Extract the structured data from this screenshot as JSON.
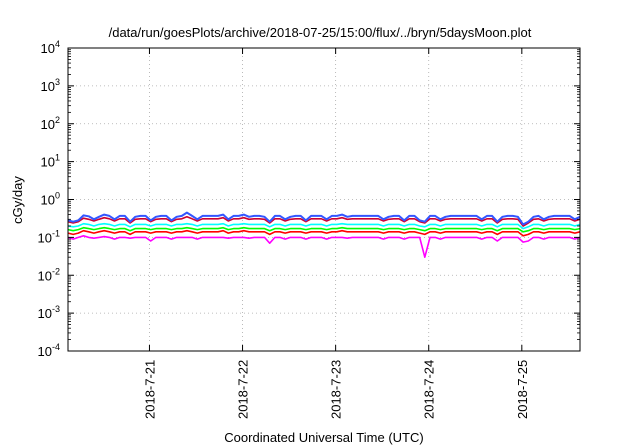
{
  "chart_data": {
    "type": "line",
    "title": "/data/run/goesPlots/archive/2018-07-25/15:00/flux/../bryn/5daysMoon.plot",
    "xlabel": "Coordinated Universal Time (UTC)",
    "ylabel": "cGy/day",
    "yscale": "log",
    "ylim": [
      0.0001,
      10000
    ],
    "y_ticks": [
      {
        "value": 0.0001,
        "base": "10",
        "exp": "-4"
      },
      {
        "value": 0.001,
        "base": "10",
        "exp": "-3"
      },
      {
        "value": 0.01,
        "base": "10",
        "exp": "-2"
      },
      {
        "value": 0.1,
        "base": "10",
        "exp": "-1"
      },
      {
        "value": 1,
        "base": "10",
        "exp": "0"
      },
      {
        "value": 10,
        "base": "10",
        "exp": "1"
      },
      {
        "value": 100,
        "base": "10",
        "exp": "2"
      },
      {
        "value": 1000,
        "base": "10",
        "exp": "3"
      },
      {
        "value": 10000,
        "base": "10",
        "exp": "4"
      }
    ],
    "xlim": [
      "2018-07-20 03:00",
      "2018-07-25 15:00"
    ],
    "x_ticks": [
      {
        "value": "2018-07-21 00:00",
        "label": "2018-7-21"
      },
      {
        "value": "2018-07-22 00:00",
        "label": "2018-7-22"
      },
      {
        "value": "2018-07-23 00:00",
        "label": "2018-7-23"
      },
      {
        "value": "2018-07-24 00:00",
        "label": "2018-7-24"
      },
      {
        "value": "2018-07-25 00:00",
        "label": "2018-7-25"
      }
    ],
    "grid": true,
    "legend": "none",
    "series": [
      {
        "color": "#ff00ff",
        "values": [
          0.1,
          0.09,
          0.1,
          0.11,
          0.1,
          0.095,
          0.1,
          0.105,
          0.1,
          0.09,
          0.1,
          0.1,
          0.095,
          0.1,
          0.1,
          0.1,
          0.08,
          0.1,
          0.1,
          0.1,
          0.09,
          0.1,
          0.1,
          0.1,
          0.1,
          0.09,
          0.1,
          0.1,
          0.1,
          0.1,
          0.1,
          0.095,
          0.1,
          0.1,
          0.1,
          0.095,
          0.1,
          0.1,
          0.1,
          0.07,
          0.1,
          0.1,
          0.09,
          0.1,
          0.1,
          0.1,
          0.09,
          0.1,
          0.1,
          0.1,
          0.09,
          0.1,
          0.1,
          0.1,
          0.095,
          0.1,
          0.1,
          0.1,
          0.1,
          0.1,
          0.1,
          0.09,
          0.1,
          0.1,
          0.1,
          0.09,
          0.1,
          0.1,
          0.1,
          0.03,
          0.1,
          0.1,
          0.09,
          0.1,
          0.1,
          0.1,
          0.1,
          0.1,
          0.1,
          0.1,
          0.09,
          0.1,
          0.1,
          0.08,
          0.1,
          0.1,
          0.1,
          0.1,
          0.075,
          0.08,
          0.1,
          0.1,
          0.09,
          0.1,
          0.1,
          0.1,
          0.1,
          0.1,
          0.09,
          0.1
        ]
      },
      {
        "color": "#ff0000",
        "values": [
          0.13,
          0.12,
          0.13,
          0.15,
          0.14,
          0.13,
          0.14,
          0.15,
          0.14,
          0.13,
          0.14,
          0.14,
          0.12,
          0.14,
          0.14,
          0.14,
          0.13,
          0.14,
          0.14,
          0.14,
          0.13,
          0.14,
          0.14,
          0.15,
          0.14,
          0.13,
          0.14,
          0.14,
          0.14,
          0.14,
          0.15,
          0.13,
          0.14,
          0.14,
          0.15,
          0.14,
          0.14,
          0.14,
          0.14,
          0.12,
          0.14,
          0.14,
          0.13,
          0.14,
          0.14,
          0.14,
          0.13,
          0.14,
          0.14,
          0.14,
          0.13,
          0.14,
          0.14,
          0.15,
          0.14,
          0.14,
          0.14,
          0.14,
          0.14,
          0.14,
          0.14,
          0.13,
          0.14,
          0.14,
          0.14,
          0.13,
          0.14,
          0.14,
          0.13,
          0.12,
          0.14,
          0.14,
          0.13,
          0.14,
          0.14,
          0.14,
          0.14,
          0.14,
          0.14,
          0.14,
          0.13,
          0.14,
          0.14,
          0.12,
          0.14,
          0.14,
          0.14,
          0.14,
          0.11,
          0.12,
          0.14,
          0.14,
          0.13,
          0.14,
          0.14,
          0.14,
          0.14,
          0.14,
          0.13,
          0.14
        ]
      },
      {
        "color": "#00ff00",
        "values": [
          0.16,
          0.15,
          0.16,
          0.18,
          0.17,
          0.16,
          0.17,
          0.18,
          0.17,
          0.16,
          0.17,
          0.17,
          0.15,
          0.17,
          0.17,
          0.17,
          0.16,
          0.17,
          0.17,
          0.17,
          0.16,
          0.17,
          0.17,
          0.18,
          0.17,
          0.16,
          0.17,
          0.17,
          0.17,
          0.17,
          0.18,
          0.16,
          0.17,
          0.17,
          0.18,
          0.17,
          0.17,
          0.17,
          0.17,
          0.15,
          0.17,
          0.17,
          0.16,
          0.17,
          0.17,
          0.17,
          0.16,
          0.17,
          0.17,
          0.17,
          0.16,
          0.17,
          0.17,
          0.18,
          0.17,
          0.17,
          0.17,
          0.17,
          0.17,
          0.17,
          0.17,
          0.16,
          0.17,
          0.17,
          0.17,
          0.16,
          0.17,
          0.17,
          0.16,
          0.15,
          0.17,
          0.17,
          0.16,
          0.17,
          0.17,
          0.17,
          0.17,
          0.17,
          0.17,
          0.17,
          0.16,
          0.17,
          0.17,
          0.15,
          0.17,
          0.17,
          0.17,
          0.17,
          0.14,
          0.15,
          0.17,
          0.17,
          0.16,
          0.17,
          0.17,
          0.17,
          0.17,
          0.17,
          0.16,
          0.17
        ]
      },
      {
        "color": "#00ffff",
        "values": [
          0.2,
          0.19,
          0.2,
          0.23,
          0.22,
          0.2,
          0.22,
          0.23,
          0.22,
          0.2,
          0.22,
          0.22,
          0.19,
          0.22,
          0.22,
          0.22,
          0.2,
          0.22,
          0.22,
          0.22,
          0.2,
          0.22,
          0.22,
          0.23,
          0.22,
          0.2,
          0.22,
          0.22,
          0.22,
          0.22,
          0.23,
          0.2,
          0.22,
          0.22,
          0.23,
          0.22,
          0.22,
          0.22,
          0.22,
          0.19,
          0.22,
          0.22,
          0.2,
          0.22,
          0.22,
          0.22,
          0.2,
          0.22,
          0.22,
          0.22,
          0.2,
          0.22,
          0.22,
          0.23,
          0.22,
          0.22,
          0.22,
          0.22,
          0.22,
          0.22,
          0.22,
          0.2,
          0.22,
          0.22,
          0.22,
          0.2,
          0.22,
          0.22,
          0.2,
          0.19,
          0.22,
          0.22,
          0.2,
          0.22,
          0.22,
          0.22,
          0.22,
          0.22,
          0.22,
          0.22,
          0.2,
          0.22,
          0.22,
          0.19,
          0.22,
          0.22,
          0.22,
          0.22,
          0.17,
          0.19,
          0.22,
          0.22,
          0.2,
          0.22,
          0.22,
          0.22,
          0.22,
          0.22,
          0.2,
          0.22
        ]
      },
      {
        "color": "#cc0033",
        "values": [
          0.26,
          0.24,
          0.26,
          0.32,
          0.3,
          0.27,
          0.3,
          0.33,
          0.31,
          0.27,
          0.31,
          0.31,
          0.24,
          0.3,
          0.31,
          0.31,
          0.26,
          0.3,
          0.31,
          0.31,
          0.26,
          0.3,
          0.31,
          0.35,
          0.31,
          0.27,
          0.31,
          0.31,
          0.31,
          0.31,
          0.33,
          0.27,
          0.31,
          0.31,
          0.33,
          0.3,
          0.31,
          0.31,
          0.3,
          0.24,
          0.31,
          0.31,
          0.27,
          0.3,
          0.31,
          0.31,
          0.26,
          0.31,
          0.31,
          0.31,
          0.27,
          0.31,
          0.31,
          0.33,
          0.3,
          0.31,
          0.31,
          0.31,
          0.31,
          0.31,
          0.31,
          0.27,
          0.3,
          0.31,
          0.31,
          0.26,
          0.31,
          0.31,
          0.26,
          0.24,
          0.31,
          0.31,
          0.27,
          0.3,
          0.31,
          0.31,
          0.31,
          0.31,
          0.31,
          0.31,
          0.27,
          0.31,
          0.31,
          0.24,
          0.3,
          0.31,
          0.31,
          0.3,
          0.2,
          0.24,
          0.3,
          0.31,
          0.27,
          0.3,
          0.31,
          0.31,
          0.31,
          0.31,
          0.27,
          0.3
        ]
      },
      {
        "color": "#3355ff",
        "values": [
          0.28,
          0.26,
          0.28,
          0.38,
          0.36,
          0.3,
          0.35,
          0.4,
          0.37,
          0.3,
          0.37,
          0.37,
          0.26,
          0.35,
          0.37,
          0.37,
          0.28,
          0.35,
          0.37,
          0.37,
          0.28,
          0.35,
          0.37,
          0.45,
          0.37,
          0.3,
          0.37,
          0.37,
          0.37,
          0.37,
          0.4,
          0.3,
          0.37,
          0.37,
          0.4,
          0.35,
          0.37,
          0.37,
          0.35,
          0.26,
          0.37,
          0.37,
          0.3,
          0.35,
          0.37,
          0.37,
          0.28,
          0.37,
          0.37,
          0.37,
          0.3,
          0.37,
          0.37,
          0.4,
          0.35,
          0.37,
          0.37,
          0.37,
          0.37,
          0.37,
          0.37,
          0.3,
          0.35,
          0.37,
          0.37,
          0.28,
          0.37,
          0.37,
          0.28,
          0.26,
          0.37,
          0.37,
          0.3,
          0.35,
          0.37,
          0.37,
          0.37,
          0.37,
          0.37,
          0.37,
          0.3,
          0.37,
          0.37,
          0.26,
          0.35,
          0.37,
          0.37,
          0.35,
          0.22,
          0.26,
          0.35,
          0.37,
          0.3,
          0.35,
          0.37,
          0.37,
          0.37,
          0.37,
          0.3,
          0.35
        ]
      }
    ]
  }
}
